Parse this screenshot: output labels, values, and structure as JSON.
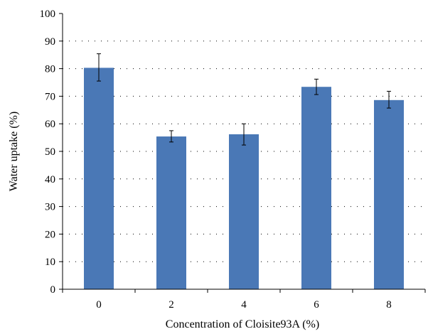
{
  "chart_data": {
    "type": "bar",
    "title": "",
    "xlabel": "Concentration of Cloisite93A (%)",
    "ylabel": "Water uptake (%)",
    "categories": [
      "0",
      "2",
      "4",
      "6",
      "8"
    ],
    "values": [
      80.3,
      55.4,
      56.2,
      73.4,
      68.6
    ],
    "error_upper": [
      85.4,
      57.5,
      60.0,
      76.2,
      71.8
    ],
    "error_lower": [
      75.5,
      53.4,
      52.3,
      70.6,
      65.7
    ],
    "ylim": [
      0,
      100
    ],
    "yticks": [
      "0",
      "10",
      "20",
      "30",
      "40",
      "50",
      "60",
      "70",
      "80",
      "90",
      "100"
    ],
    "grid": "horizontal-dotted",
    "legend": "none",
    "bar_color": "#4a78b6"
  }
}
